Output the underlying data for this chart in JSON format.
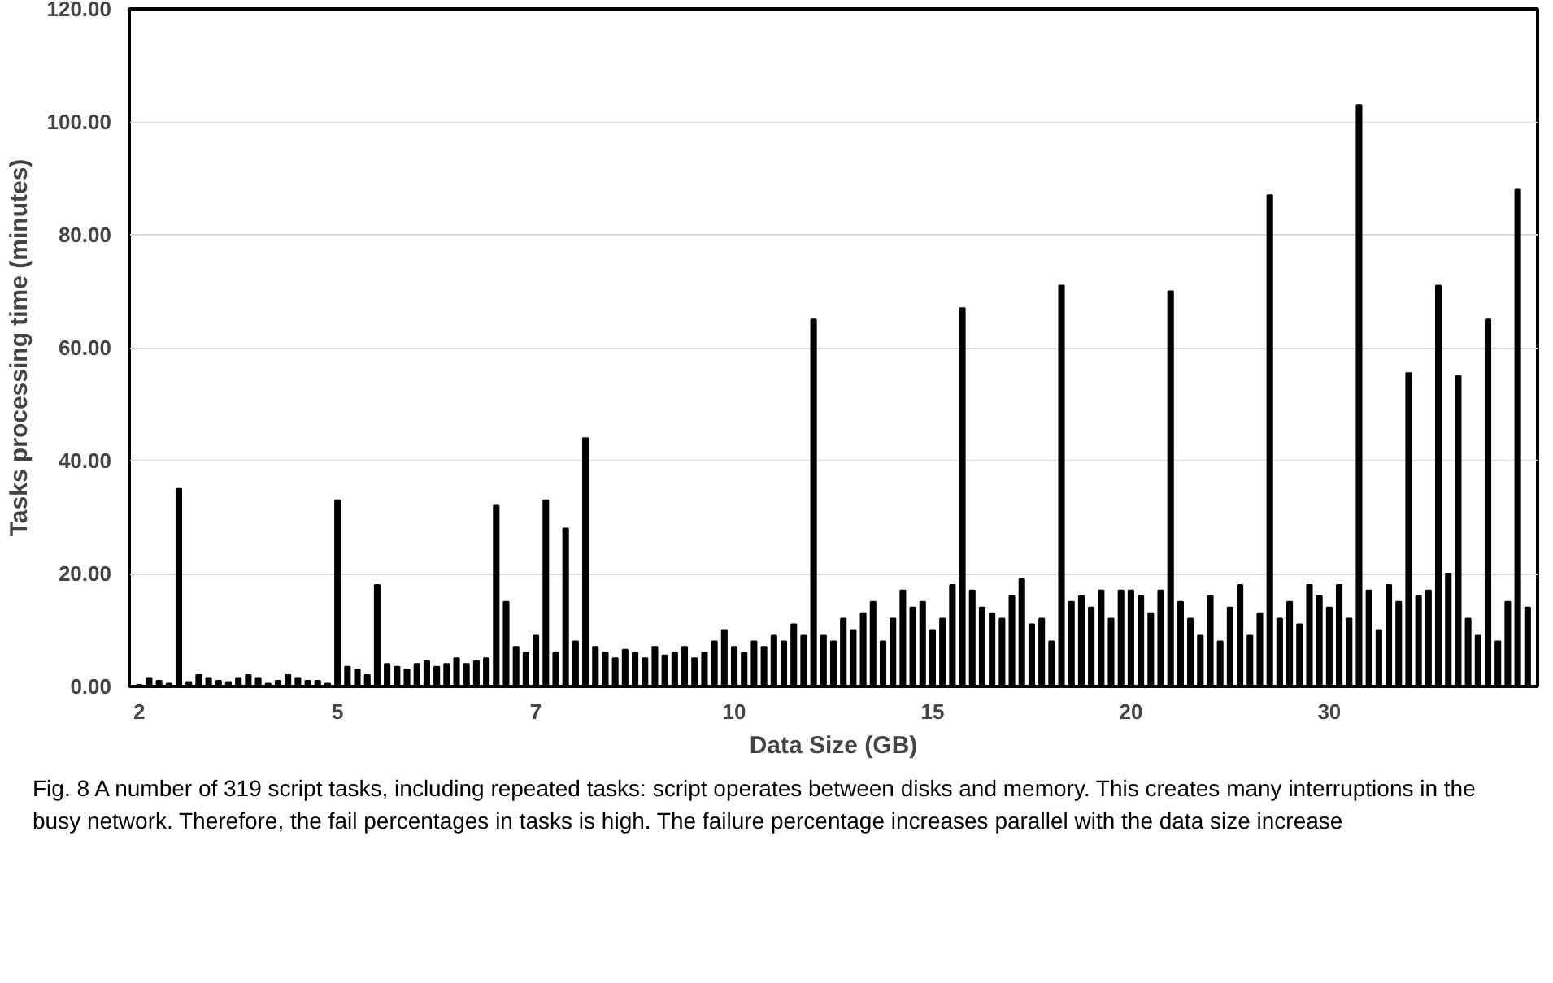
{
  "chart_data": {
    "type": "bar",
    "xlabel": "Data Size (GB)",
    "ylabel": "Tasks processing time (minutes)",
    "categories": [
      "2",
      null,
      null,
      null,
      null,
      null,
      null,
      null,
      null,
      null,
      null,
      null,
      null,
      null,
      null,
      null,
      null,
      null,
      null,
      null,
      "5",
      null,
      null,
      null,
      null,
      null,
      null,
      null,
      null,
      null,
      null,
      null,
      null,
      null,
      null,
      null,
      null,
      null,
      null,
      null,
      "7",
      null,
      null,
      null,
      null,
      null,
      null,
      null,
      null,
      null,
      null,
      null,
      null,
      null,
      null,
      null,
      null,
      null,
      null,
      null,
      "10",
      null,
      null,
      null,
      null,
      null,
      null,
      null,
      null,
      null,
      null,
      null,
      null,
      null,
      null,
      null,
      null,
      null,
      null,
      null,
      "15",
      null,
      null,
      null,
      null,
      null,
      null,
      null,
      null,
      null,
      null,
      null,
      null,
      null,
      null,
      null,
      null,
      null,
      null,
      null,
      "20",
      null,
      null,
      null,
      null,
      null,
      null,
      null,
      null,
      null,
      null,
      null,
      null,
      null,
      null,
      null,
      null,
      null,
      null,
      null,
      "30",
      null,
      null,
      null,
      null,
      null,
      null,
      null,
      null,
      null,
      null,
      null,
      null,
      null,
      null,
      null,
      null,
      null,
      null,
      null,
      null
    ],
    "values": [
      0.3,
      1.5,
      1,
      0.5,
      35,
      0.8,
      2,
      1.5,
      1,
      0.8,
      1.5,
      2,
      1.5,
      0.5,
      1,
      2,
      1.5,
      1,
      1,
      0.5,
      33,
      3.5,
      3,
      2,
      18,
      4,
      3.5,
      3,
      4,
      4.5,
      3.5,
      4,
      5,
      4,
      4.5,
      5,
      32,
      15,
      7,
      6,
      9,
      33,
      6,
      28,
      8,
      44,
      7,
      6,
      5,
      6.5,
      6,
      5,
      7,
      5.5,
      6,
      7,
      5,
      6,
      8,
      10,
      7,
      6,
      8,
      7,
      9,
      8,
      11,
      9,
      65,
      9,
      8,
      12,
      10,
      13,
      15,
      8,
      12,
      17,
      14,
      15,
      10,
      12,
      18,
      67,
      17,
      14,
      13,
      12,
      16,
      19,
      11,
      12,
      8,
      71,
      15,
      16,
      14,
      17,
      12,
      17,
      17,
      16,
      13,
      17,
      70,
      15,
      12,
      9,
      16,
      8,
      14,
      18,
      9,
      13,
      87,
      12,
      15,
      11,
      18,
      16,
      14,
      18,
      12,
      103,
      17,
      10,
      18,
      15,
      55.5,
      16,
      17,
      71,
      20,
      55,
      12,
      9,
      65,
      8,
      15,
      88,
      14
    ],
    "color": "#000000",
    "ylim": [
      0,
      120
    ],
    "yticks": [
      {
        "value": 0,
        "label": "0.00"
      },
      {
        "value": 20,
        "label": "20.00"
      },
      {
        "value": 40,
        "label": "40.00"
      },
      {
        "value": 60,
        "label": "60.00"
      },
      {
        "value": 80,
        "label": "80.00"
      },
      {
        "value": 100,
        "label": "100.00"
      },
      {
        "value": 120,
        "label": "120.00"
      }
    ],
    "grid": "y",
    "annotations": [
      "Fig. 8  A number of 319 script tasks, including repeated tasks: script operates between disks and memory. This creates many interruptions in the busy network. Therefore, the fail percentages in tasks is high. The failure percentage increases parallel with the data size increase"
    ]
  }
}
